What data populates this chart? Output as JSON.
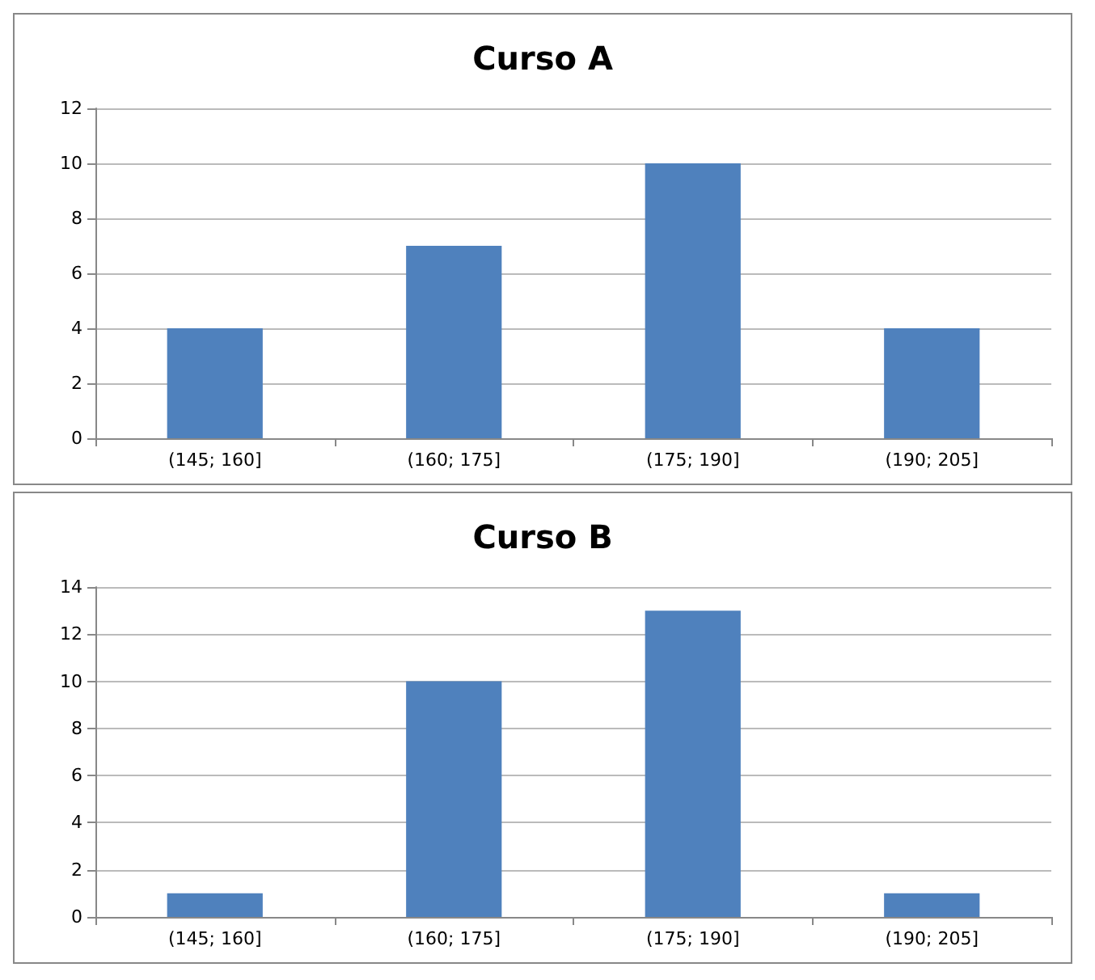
{
  "chart_data": [
    {
      "type": "bar",
      "title": "Curso A",
      "categories": [
        "(145; 160]",
        "(160; 175]",
        "(175; 190]",
        "(190; 205]"
      ],
      "values": [
        4,
        7,
        10,
        4
      ],
      "color": "#4f81bd",
      "ylim": [
        0,
        12
      ],
      "yticks": [
        0,
        2,
        4,
        6,
        8,
        10,
        12
      ],
      "grid": "y"
    },
    {
      "type": "bar",
      "title": "Curso B",
      "categories": [
        "(145; 160]",
        "(160; 175]",
        "(175; 190]",
        "(190; 205]"
      ],
      "values": [
        1,
        10,
        13,
        1
      ],
      "color": "#4f81bd",
      "ylim": [
        0,
        14
      ],
      "yticks": [
        0,
        2,
        4,
        6,
        8,
        10,
        12,
        14
      ],
      "grid": "y"
    }
  ]
}
